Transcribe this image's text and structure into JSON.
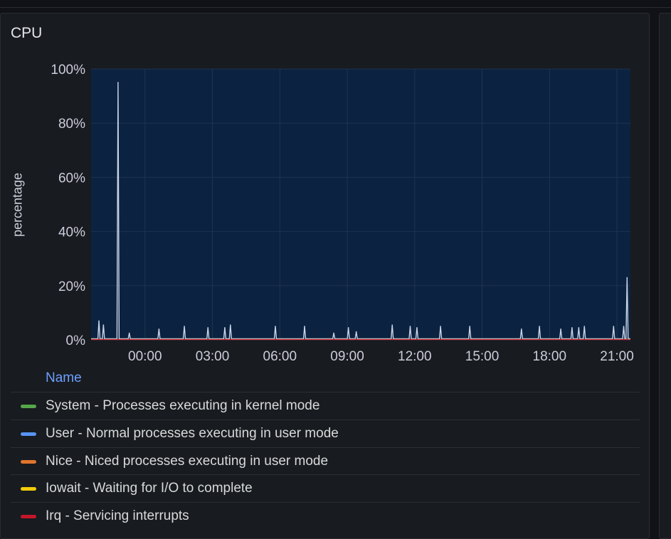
{
  "panel": {
    "title": "CPU"
  },
  "chart_data": {
    "type": "line",
    "ylabel": "percentage",
    "ylim": [
      0,
      100
    ],
    "y_ticks": [
      "0%",
      "20%",
      "40%",
      "60%",
      "80%",
      "100%"
    ],
    "x_ticks": [
      "00:00",
      "03:00",
      "06:00",
      "09:00",
      "12:00",
      "15:00",
      "18:00",
      "21:00"
    ],
    "x_range_hours": [
      -2.4,
      21.6
    ],
    "grid": true,
    "colors": {
      "plot_bg": "#0b2340",
      "line": "#c9d3e8",
      "grid": "#1f3350"
    },
    "spikes": [
      {
        "x": -2.05,
        "y": 7
      },
      {
        "x": -1.85,
        "y": 5.5
      },
      {
        "x": -1.2,
        "y": 95
      },
      {
        "x": -0.7,
        "y": 2.5
      },
      {
        "x": 0.62,
        "y": 4
      },
      {
        "x": 1.75,
        "y": 5
      },
      {
        "x": 2.8,
        "y": 4.5
      },
      {
        "x": 3.55,
        "y": 4.5
      },
      {
        "x": 3.8,
        "y": 5.5
      },
      {
        "x": 5.8,
        "y": 5
      },
      {
        "x": 7.1,
        "y": 5
      },
      {
        "x": 8.4,
        "y": 2.5
      },
      {
        "x": 9.05,
        "y": 4.5
      },
      {
        "x": 9.4,
        "y": 3
      },
      {
        "x": 11.0,
        "y": 5.5
      },
      {
        "x": 11.8,
        "y": 5
      },
      {
        "x": 12.1,
        "y": 4.5
      },
      {
        "x": 13.15,
        "y": 5
      },
      {
        "x": 14.45,
        "y": 5
      },
      {
        "x": 16.75,
        "y": 4
      },
      {
        "x": 17.55,
        "y": 5
      },
      {
        "x": 18.5,
        "y": 4
      },
      {
        "x": 19.0,
        "y": 4.5
      },
      {
        "x": 19.3,
        "y": 4.5
      },
      {
        "x": 19.55,
        "y": 5
      },
      {
        "x": 20.85,
        "y": 5
      },
      {
        "x": 21.3,
        "y": 5
      },
      {
        "x": 21.45,
        "y": 23
      }
    ]
  },
  "legend": {
    "header": "Name",
    "items": [
      {
        "label": "System - Processes executing in kernel mode",
        "color": "#56a64b"
      },
      {
        "label": "User - Normal processes executing in user mode",
        "color": "#5794f2"
      },
      {
        "label": "Nice - Niced processes executing in user mode",
        "color": "#e0752d"
      },
      {
        "label": "Iowait - Waiting for I/O to complete",
        "color": "#f2cc0c"
      },
      {
        "label": "Irq - Servicing interrupts",
        "color": "#c4162a"
      }
    ]
  }
}
